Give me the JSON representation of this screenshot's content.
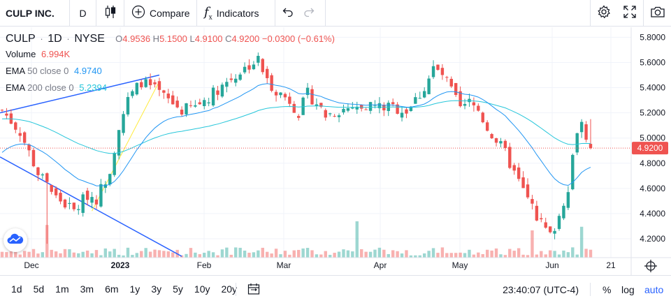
{
  "toolbar": {
    "symbol": "CULP INC.",
    "interval": "D",
    "compare_label": "Compare",
    "indicators_label": "Indicators"
  },
  "legend": {
    "ticker": "CULP",
    "interval": "1D",
    "exchange": "NYSE",
    "open_key": "O",
    "open": "4.9536",
    "high_key": "H",
    "high": "5.1500",
    "low_key": "L",
    "low": "4.9100",
    "close_key": "C",
    "close": "4.9200",
    "change": "−0.0300 (−0.61%)",
    "volume_label": "Volume",
    "volume_value": "6.994K",
    "ema50_label": "EMA 50 close 0",
    "ema50_value": "4.9740",
    "ema200_label": "EMA 200 close 0",
    "ema200_value": "5.2394"
  },
  "colors": {
    "up": "#26a69a",
    "down": "#ef5350",
    "ema50": "#2196f3",
    "ema200": "#26c6da",
    "trendline": "#2962ff",
    "price_line": "#ef5350"
  },
  "bottom": {
    "ranges": [
      "1d",
      "5d",
      "1m",
      "3m",
      "6m",
      "1y",
      "3y",
      "5y",
      "10y",
      "20y"
    ],
    "time": "23:40:07 (UTC-4)",
    "percent_label": "%",
    "log_label": "log",
    "auto_label": "auto"
  },
  "chart_data": {
    "type": "candlestick",
    "title": "CULP · 1D · NYSE",
    "x_tick_labels": [
      "Dec",
      "2023",
      "Feb",
      "Mar",
      "Apr",
      "May",
      "Jun",
      "21"
    ],
    "y_tick_labels": [
      "5.8000",
      "5.6000",
      "5.4000",
      "5.2000",
      "5.0000",
      "4.8000",
      "4.6000",
      "4.4000",
      "4.2000"
    ],
    "ylim": [
      4.05,
      5.88
    ],
    "last_price": "4.9200",
    "series": [
      {
        "name": "EMA 50 close 0",
        "last": 4.974
      },
      {
        "name": "EMA 200 close 0",
        "last": 5.2394
      }
    ],
    "close_path": [
      [
        0,
        5.22
      ],
      [
        4,
        5.05
      ],
      [
        8,
        4.72
      ],
      [
        12,
        4.53
      ],
      [
        16,
        4.42
      ],
      [
        19,
        4.55
      ],
      [
        21,
        4.52
      ],
      [
        24,
        4.75
      ],
      [
        26,
        5.1
      ],
      [
        28,
        5.3
      ],
      [
        31,
        5.45
      ],
      [
        34,
        5.38
      ],
      [
        37,
        5.3
      ],
      [
        40,
        5.22
      ],
      [
        43,
        5.25
      ],
      [
        46,
        5.33
      ],
      [
        49,
        5.42
      ],
      [
        52,
        5.5
      ],
      [
        55,
        5.58
      ],
      [
        57,
        5.62
      ],
      [
        59,
        5.45
      ],
      [
        62,
        5.35
      ],
      [
        64,
        5.3
      ],
      [
        66,
        5.2
      ],
      [
        68,
        5.35
      ],
      [
        70,
        5.28
      ],
      [
        72,
        5.18
      ],
      [
        75,
        5.22
      ],
      [
        78,
        5.25
      ],
      [
        81,
        5.27
      ],
      [
        84,
        5.25
      ],
      [
        87,
        5.24
      ],
      [
        90,
        5.22
      ],
      [
        92,
        5.3
      ],
      [
        94,
        5.4
      ],
      [
        96,
        5.55
      ],
      [
        98,
        5.5
      ],
      [
        100,
        5.38
      ],
      [
        102,
        5.22
      ],
      [
        104,
        5.28
      ],
      [
        106,
        5.22
      ],
      [
        108,
        5.08
      ],
      [
        110,
        4.98
      ],
      [
        112,
        4.88
      ],
      [
        114,
        4.72
      ],
      [
        116,
        4.58
      ],
      [
        118,
        4.45
      ],
      [
        120,
        4.32
      ],
      [
        122,
        4.22
      ],
      [
        124,
        4.38
      ],
      [
        126,
        4.62
      ],
      [
        127,
        4.85
      ],
      [
        128,
        5.08
      ],
      [
        129,
        5.12
      ],
      [
        130,
        5.02
      ],
      [
        131,
        4.92
      ]
    ],
    "volume_spikes": [
      {
        "index": 10,
        "relative": 0.9
      },
      {
        "index": 79,
        "relative": 1.0
      },
      {
        "index": 118,
        "relative": 0.75
      },
      {
        "index": 129,
        "relative": 0.85
      }
    ]
  }
}
